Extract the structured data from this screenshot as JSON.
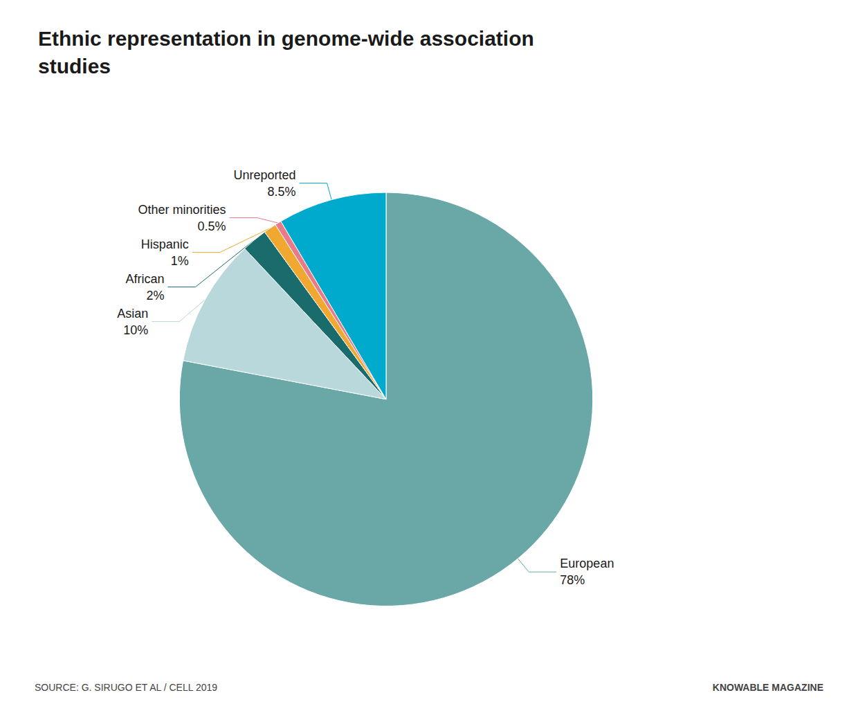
{
  "chart_data": {
    "type": "pie",
    "title": "Ethnic representation in genome-wide association\nstudies",
    "categories": [
      "European",
      "Asian",
      "African",
      "Hispanic",
      "Other minorities",
      "Unreported"
    ],
    "values": [
      78,
      10,
      2,
      1,
      0.5,
      8.5
    ],
    "value_labels": [
      "78%",
      "10%",
      "2%",
      "1%",
      "0.5%",
      "8.5%"
    ],
    "colors": [
      "#6aA8A8",
      "#B8D8DC",
      "#1A6B6B",
      "#F0A830",
      "#E87A8A",
      "#00AACC"
    ],
    "annotations": [
      "SOURCE: G. SIRUGO ET AL / CELL 2019",
      "KNOWABLE MAGAZINE"
    ],
    "data_labels": true
  }
}
